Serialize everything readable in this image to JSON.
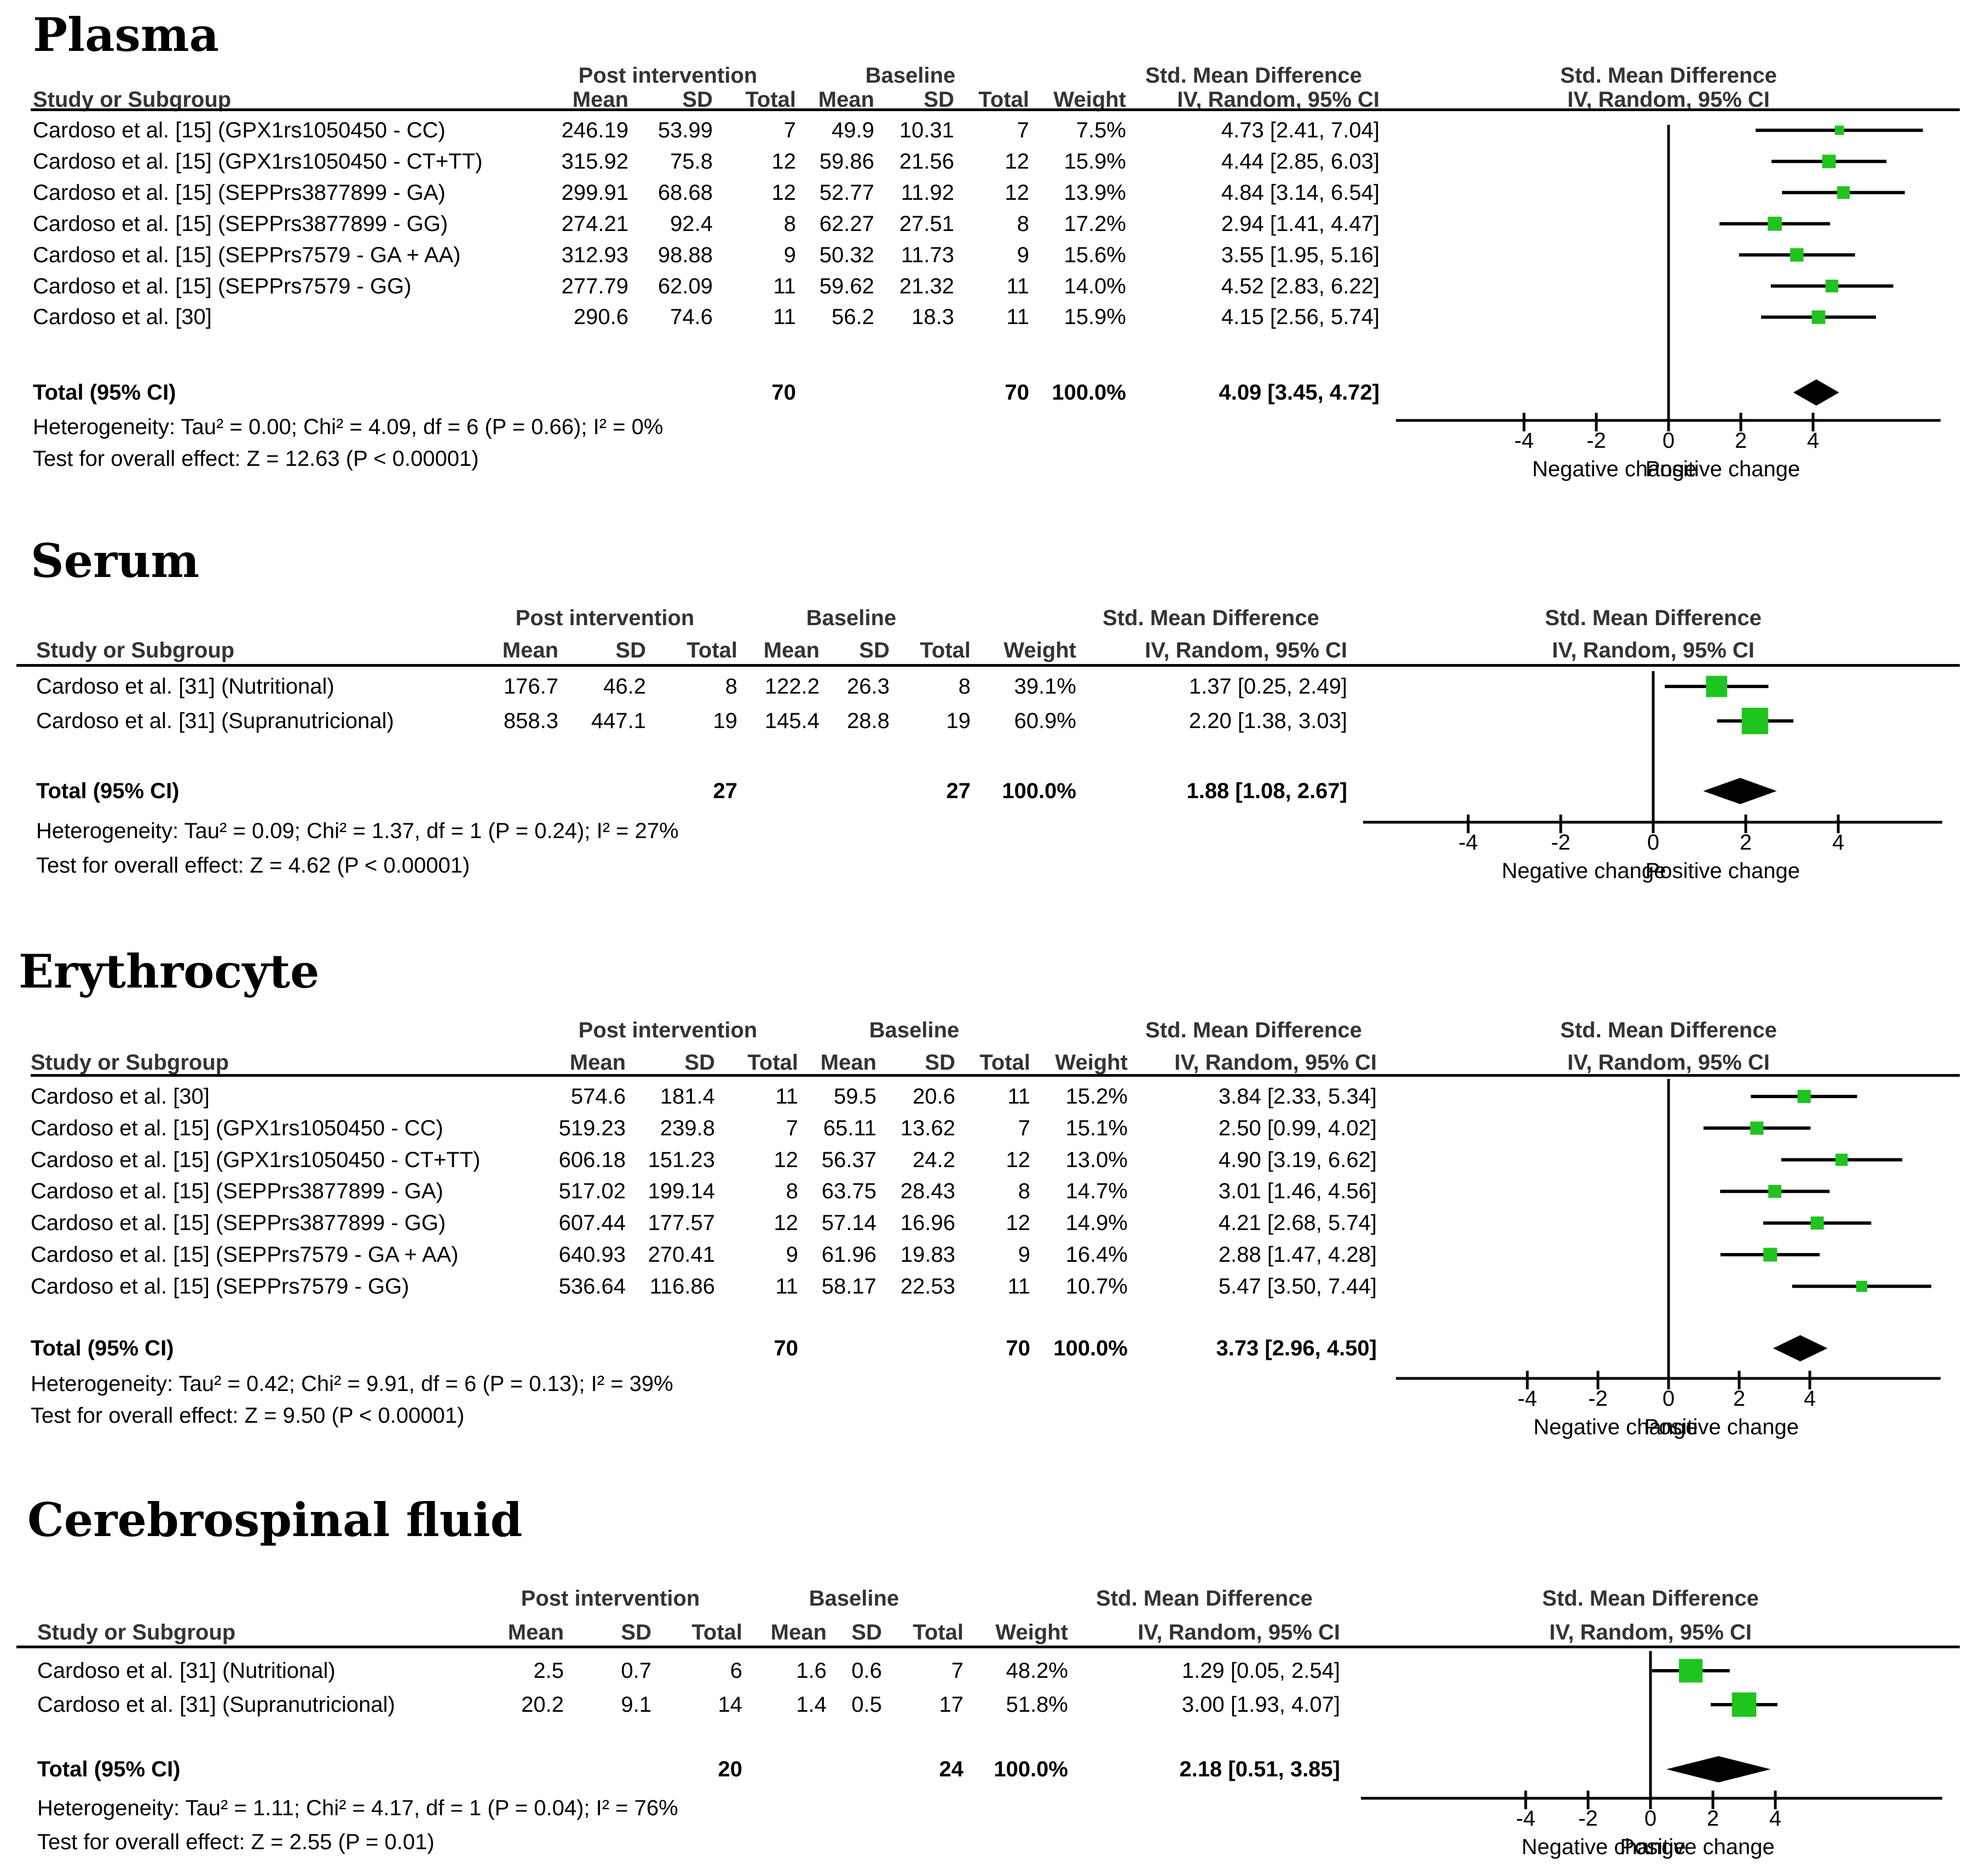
{
  "figure": {
    "headers": {
      "study": "Study or Subgroup",
      "post": "Post intervention",
      "baseline": "Baseline",
      "mean": "Mean",
      "sd": "SD",
      "total": "Total",
      "weight": "Weight",
      "smd": "Std. Mean Difference",
      "method": "IV, Random, 95% CI"
    },
    "axis_labels": {
      "negative": "Negative change",
      "positive": "Positive change"
    },
    "total_label": "Total (95% CI)"
  },
  "colors": {
    "marker": "#1fc41f",
    "ci_line": "#000000",
    "diamond": "#000000",
    "axis": "#000000"
  },
  "chart_data": [
    {
      "type": "forest",
      "title": "Plasma",
      "xticks": [
        -4,
        -2,
        0,
        2,
        4
      ],
      "xlim": [
        -7.5,
        7.5
      ],
      "studies": [
        {
          "label": "Cardoso et al. [15] (GPX1rs1050450 - CC)",
          "post_mean": "246.19",
          "post_sd": "53.99",
          "post_total": "7",
          "base_mean": "49.9",
          "base_sd": "10.31",
          "base_total": "7",
          "weight": "7.5%",
          "ci_text": "4.73 [2.41, 7.04]",
          "est": 4.73,
          "lo": 2.41,
          "hi": 7.04,
          "w": 7.5
        },
        {
          "label": "Cardoso et al. [15] (GPX1rs1050450 - CT+TT)",
          "post_mean": "315.92",
          "post_sd": "75.8",
          "post_total": "12",
          "base_mean": "59.86",
          "base_sd": "21.56",
          "base_total": "12",
          "weight": "15.9%",
          "ci_text": "4.44 [2.85, 6.03]",
          "est": 4.44,
          "lo": 2.85,
          "hi": 6.03,
          "w": 15.9
        },
        {
          "label": "Cardoso et al. [15] (SEPPrs3877899 - GA)",
          "post_mean": "299.91",
          "post_sd": "68.68",
          "post_total": "12",
          "base_mean": "52.77",
          "base_sd": "11.92",
          "base_total": "12",
          "weight": "13.9%",
          "ci_text": "4.84 [3.14, 6.54]",
          "est": 4.84,
          "lo": 3.14,
          "hi": 6.54,
          "w": 13.9
        },
        {
          "label": "Cardoso et al. [15] (SEPPrs3877899 - GG)",
          "post_mean": "274.21",
          "post_sd": "92.4",
          "post_total": "8",
          "base_mean": "62.27",
          "base_sd": "27.51",
          "base_total": "8",
          "weight": "17.2%",
          "ci_text": "2.94 [1.41, 4.47]",
          "est": 2.94,
          "lo": 1.41,
          "hi": 4.47,
          "w": 17.2
        },
        {
          "label": "Cardoso et al. [15] (SEPPrs7579 - GA + AA)",
          "post_mean": "312.93",
          "post_sd": "98.88",
          "post_total": "9",
          "base_mean": "50.32",
          "base_sd": "11.73",
          "base_total": "9",
          "weight": "15.6%",
          "ci_text": "3.55 [1.95, 5.16]",
          "est": 3.55,
          "lo": 1.95,
          "hi": 5.16,
          "w": 15.6
        },
        {
          "label": "Cardoso et al. [15] (SEPPrs7579 - GG)",
          "post_mean": "277.79",
          "post_sd": "62.09",
          "post_total": "11",
          "base_mean": "59.62",
          "base_sd": "21.32",
          "base_total": "11",
          "weight": "14.0%",
          "ci_text": "4.52 [2.83, 6.22]",
          "est": 4.52,
          "lo": 2.83,
          "hi": 6.22,
          "w": 14.0
        },
        {
          "label": "Cardoso et al. [30]",
          "post_mean": "290.6",
          "post_sd": "74.6",
          "post_total": "11",
          "base_mean": "56.2",
          "base_sd": "18.3",
          "base_total": "11",
          "weight": "15.9%",
          "ci_text": "4.15 [2.56, 5.74]",
          "est": 4.15,
          "lo": 2.56,
          "hi": 5.74,
          "w": 15.9
        }
      ],
      "total": {
        "post_total": "70",
        "base_total": "70",
        "weight": "100.0%",
        "ci_text": "4.09 [3.45, 4.72]",
        "est": 4.09,
        "lo": 3.45,
        "hi": 4.72
      },
      "heterogeneity": "Heterogeneity: Tau² = 0.00; Chi² = 4.09, df = 6 (P = 0.66); I² = 0%",
      "overall": "Test for overall effect: Z = 12.63 (P < 0.00001)"
    },
    {
      "type": "forest",
      "title": "Serum",
      "xticks": [
        -4,
        -2,
        0,
        2,
        4
      ],
      "xlim": [
        -6.2,
        6.2
      ],
      "studies": [
        {
          "label": "Cardoso et al. [31] (Nutritional)",
          "post_mean": "176.7",
          "post_sd": "46.2",
          "post_total": "8",
          "base_mean": "122.2",
          "base_sd": "26.3",
          "base_total": "8",
          "weight": "39.1%",
          "ci_text": "1.37 [0.25, 2.49]",
          "est": 1.37,
          "lo": 0.25,
          "hi": 2.49,
          "w": 39.1
        },
        {
          "label": "Cardoso et al. [31] (Supranutricional)",
          "post_mean": "858.3",
          "post_sd": "447.1",
          "post_total": "19",
          "base_mean": "145.4",
          "base_sd": "28.8",
          "base_total": "19",
          "weight": "60.9%",
          "ci_text": "2.20 [1.38, 3.03]",
          "est": 2.2,
          "lo": 1.38,
          "hi": 3.03,
          "w": 60.9
        }
      ],
      "total": {
        "post_total": "27",
        "base_total": "27",
        "weight": "100.0%",
        "ci_text": "1.88 [1.08, 2.67]",
        "est": 1.88,
        "lo": 1.08,
        "hi": 2.67
      },
      "heterogeneity": "Heterogeneity: Tau² = 0.09; Chi² = 1.37, df = 1 (P = 0.24); I² = 27%",
      "overall": "Test for overall effect: Z = 4.62 (P < 0.00001)"
    },
    {
      "type": "forest",
      "title": "Erythrocyte",
      "xticks": [
        -4,
        -2,
        0,
        2,
        4
      ],
      "xlim": [
        -7.5,
        7.5
      ],
      "studies": [
        {
          "label": "Cardoso et al. [30]",
          "post_mean": "574.6",
          "post_sd": "181.4",
          "post_total": "11",
          "base_mean": "59.5",
          "base_sd": "20.6",
          "base_total": "11",
          "weight": "15.2%",
          "ci_text": "3.84 [2.33, 5.34]",
          "est": 3.84,
          "lo": 2.33,
          "hi": 5.34,
          "w": 15.2
        },
        {
          "label": "Cardoso et al. [15] (GPX1rs1050450 - CC)",
          "post_mean": "519.23",
          "post_sd": "239.8",
          "post_total": "7",
          "base_mean": "65.11",
          "base_sd": "13.62",
          "base_total": "7",
          "weight": "15.1%",
          "ci_text": "2.50 [0.99, 4.02]",
          "est": 2.5,
          "lo": 0.99,
          "hi": 4.02,
          "w": 15.1
        },
        {
          "label": "Cardoso et al. [15] (GPX1rs1050450 - CT+TT)",
          "post_mean": "606.18",
          "post_sd": "151.23",
          "post_total": "12",
          "base_mean": "56.37",
          "base_sd": "24.2",
          "base_total": "12",
          "weight": "13.0%",
          "ci_text": "4.90 [3.19, 6.62]",
          "est": 4.9,
          "lo": 3.19,
          "hi": 6.62,
          "w": 13.0
        },
        {
          "label": "Cardoso et al. [15] (SEPPrs3877899 - GA)",
          "post_mean": "517.02",
          "post_sd": "199.14",
          "post_total": "8",
          "base_mean": "63.75",
          "base_sd": "28.43",
          "base_total": "8",
          "weight": "14.7%",
          "ci_text": "3.01 [1.46, 4.56]",
          "est": 3.01,
          "lo": 1.46,
          "hi": 4.56,
          "w": 14.7
        },
        {
          "label": "Cardoso et al. [15] (SEPPrs3877899 - GG)",
          "post_mean": "607.44",
          "post_sd": "177.57",
          "post_total": "12",
          "base_mean": "57.14",
          "base_sd": "16.96",
          "base_total": "12",
          "weight": "14.9%",
          "ci_text": "4.21 [2.68, 5.74]",
          "est": 4.21,
          "lo": 2.68,
          "hi": 5.74,
          "w": 14.9
        },
        {
          "label": "Cardoso et al. [15] (SEPPrs7579 - GA + AA)",
          "post_mean": "640.93",
          "post_sd": "270.41",
          "post_total": "9",
          "base_mean": "61.96",
          "base_sd": "19.83",
          "base_total": "9",
          "weight": "16.4%",
          "ci_text": "2.88 [1.47, 4.28]",
          "est": 2.88,
          "lo": 1.47,
          "hi": 4.28,
          "w": 16.4
        },
        {
          "label": "Cardoso et al. [15] (SEPPrs7579 - GG)",
          "post_mean": "536.64",
          "post_sd": "116.86",
          "post_total": "11",
          "base_mean": "58.17",
          "base_sd": "22.53",
          "base_total": "11",
          "weight": "10.7%",
          "ci_text": "5.47 [3.50, 7.44]",
          "est": 5.47,
          "lo": 3.5,
          "hi": 7.44,
          "w": 10.7
        }
      ],
      "total": {
        "post_total": "70",
        "base_total": "70",
        "weight": "100.0%",
        "ci_text": "3.73 [2.96, 4.50]",
        "est": 3.73,
        "lo": 2.96,
        "hi": 4.5
      },
      "heterogeneity": "Heterogeneity: Tau² = 0.42; Chi² = 9.91, df = 6 (P = 0.13); I² = 39%",
      "overall": "Test for overall effect: Z = 9.50 (P < 0.00001)"
    },
    {
      "type": "forest",
      "title": "Cerebrospinal fluid",
      "xticks": [
        -4,
        -2,
        0,
        2,
        4
      ],
      "xlim": [
        -9.2,
        9.2
      ],
      "studies": [
        {
          "label": "Cardoso et al. [31] (Nutritional)",
          "post_mean": "2.5",
          "post_sd": "0.7",
          "post_total": "6",
          "base_mean": "1.6",
          "base_sd": "0.6",
          "base_total": "7",
          "weight": "48.2%",
          "ci_text": "1.29 [0.05, 2.54]",
          "est": 1.29,
          "lo": 0.05,
          "hi": 2.54,
          "w": 48.2
        },
        {
          "label": "Cardoso et al. [31] (Supranutricional)",
          "post_mean": "20.2",
          "post_sd": "9.1",
          "post_total": "14",
          "base_mean": "1.4",
          "base_sd": "0.5",
          "base_total": "17",
          "weight": "51.8%",
          "ci_text": "3.00 [1.93, 4.07]",
          "est": 3.0,
          "lo": 1.93,
          "hi": 4.07,
          "w": 51.8
        }
      ],
      "total": {
        "post_total": "20",
        "base_total": "24",
        "weight": "100.0%",
        "ci_text": "2.18 [0.51, 3.85]",
        "est": 2.18,
        "lo": 0.51,
        "hi": 3.85
      },
      "heterogeneity": "Heterogeneity: Tau² = 1.11; Chi² = 4.17, df = 1 (P = 0.04); I² = 76%",
      "overall": "Test for overall effect: Z = 2.55 (P = 0.01)"
    }
  ]
}
